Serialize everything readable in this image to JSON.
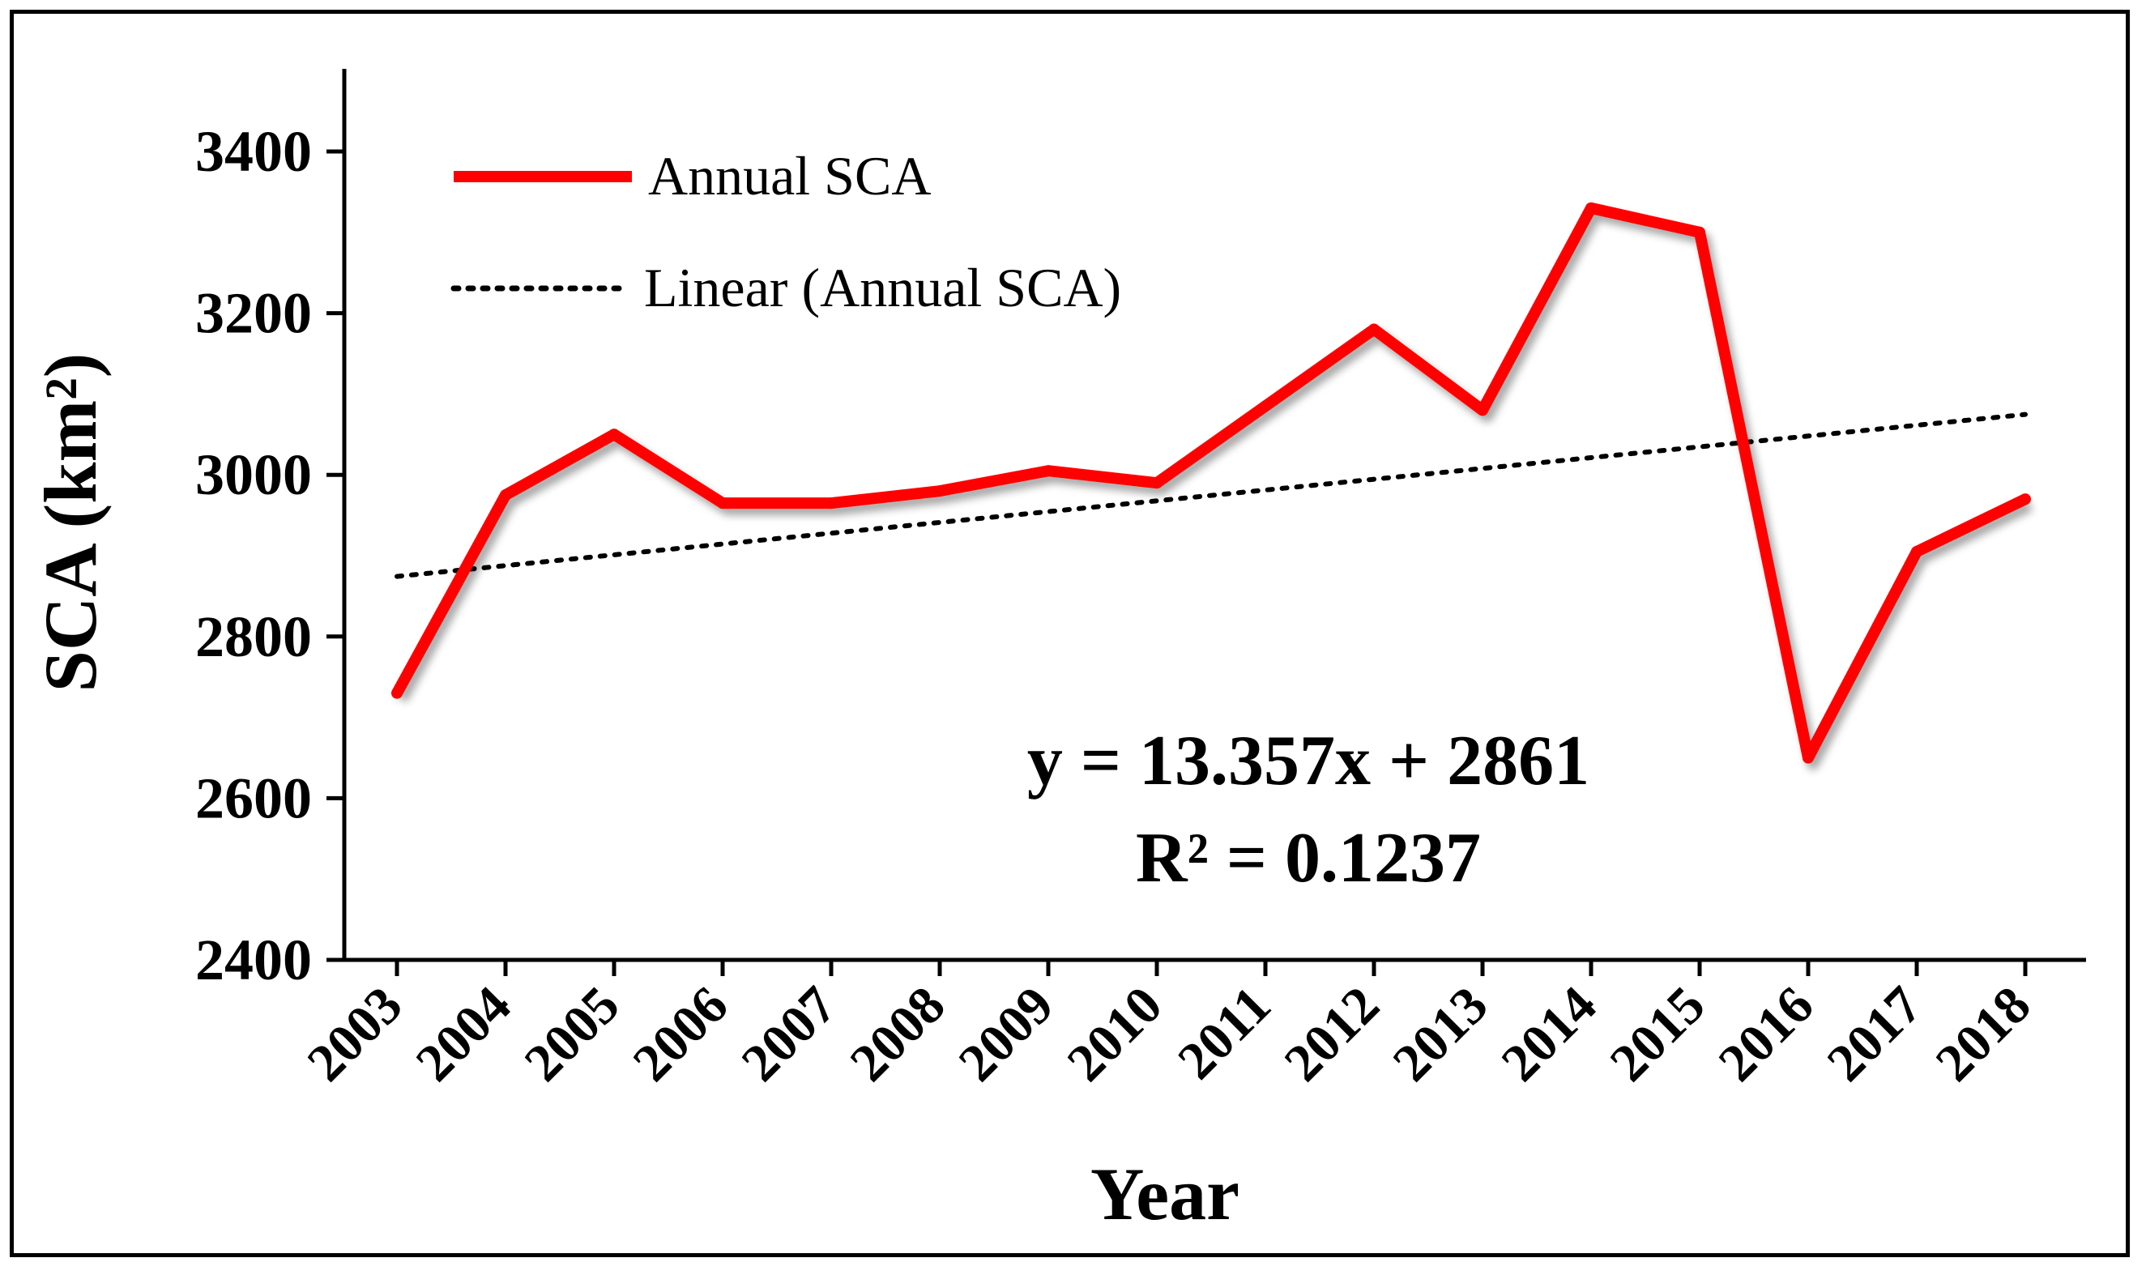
{
  "chart_data": {
    "type": "line",
    "title": "",
    "xlabel": "Year",
    "ylabel": "SCA (km²)",
    "categories": [
      "2003",
      "2004",
      "2005",
      "2006",
      "2007",
      "2008",
      "2009",
      "2010",
      "2011",
      "2012",
      "2013",
      "2014",
      "2015",
      "2016",
      "2017",
      "2018"
    ],
    "series": [
      {
        "name": "Annual SCA",
        "color": "#ff0000",
        "values": [
          2730,
          2975,
          3050,
          2965,
          2965,
          2980,
          3005,
          2990,
          3085,
          3180,
          3080,
          3330,
          3300,
          2650,
          2905,
          2970
        ]
      }
    ],
    "trendline": {
      "name": "Linear (Annual SCA)",
      "color": "#000000",
      "style": "dotted",
      "slope": 13.357,
      "intercept": 2861
    },
    "yticks": [
      "2400",
      "2600",
      "2800",
      "3000",
      "3200",
      "3400"
    ],
    "ylim": [
      2400,
      3500
    ],
    "legend_position": "top-left",
    "equation_text": "y = 13.357x + 2861",
    "r2_text": "R² = 0.1237"
  }
}
